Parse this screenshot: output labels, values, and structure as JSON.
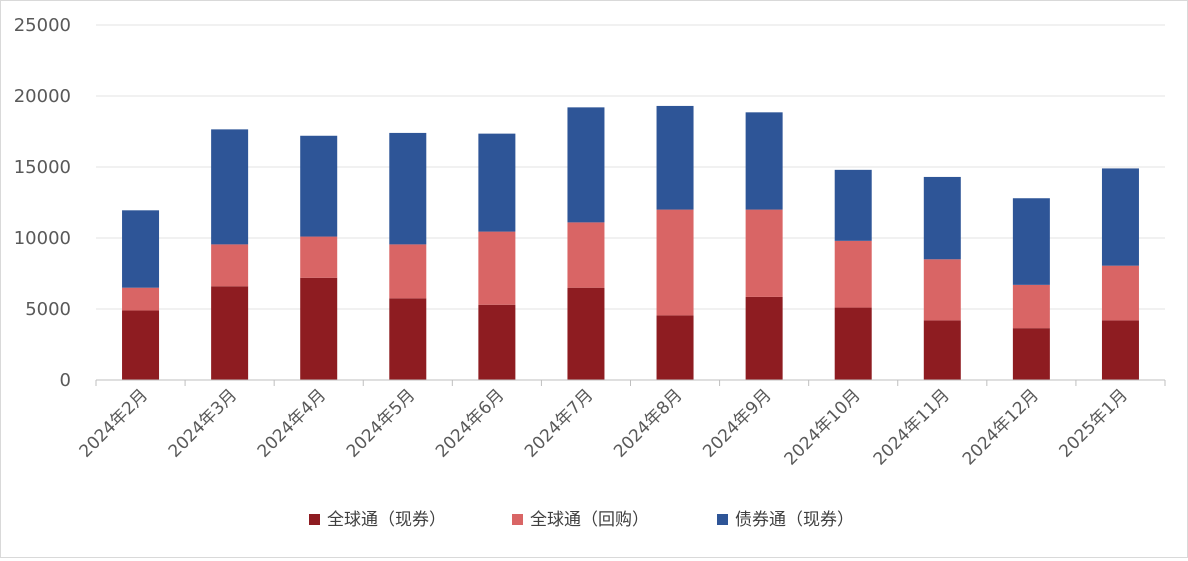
{
  "chart_data": {
    "type": "bar",
    "stacked": true,
    "categories": [
      "2024年2月",
      "2024年3月",
      "2024年4月",
      "2024年5月",
      "2024年6月",
      "2024年7月",
      "2024年8月",
      "2024年9月",
      "2024年10月",
      "2024年11月",
      "2024年12月",
      "2025年1月"
    ],
    "series": [
      {
        "name": "全球通（现券）",
        "color": "#8e1c21",
        "values": [
          4900,
          6600,
          7200,
          5750,
          5300,
          6500,
          4550,
          5850,
          5100,
          4200,
          3650,
          4200
        ]
      },
      {
        "name": "全球通（回购）",
        "color": "#d96565",
        "values": [
          1600,
          2950,
          2900,
          3800,
          5150,
          4600,
          7450,
          6150,
          4700,
          4300,
          3050,
          3850
        ]
      },
      {
        "name": "债券通（现券）",
        "color": "#2e5597",
        "values": [
          5450,
          8100,
          7100,
          7850,
          6900,
          8100,
          7300,
          6850,
          5000,
          5800,
          6100,
          6850
        ]
      }
    ],
    "ylim": [
      0,
      25000
    ],
    "yticks": [
      "0",
      "5000",
      "10000",
      "15000",
      "20000",
      "25000"
    ],
    "grid": true,
    "legend": "bottom"
  }
}
